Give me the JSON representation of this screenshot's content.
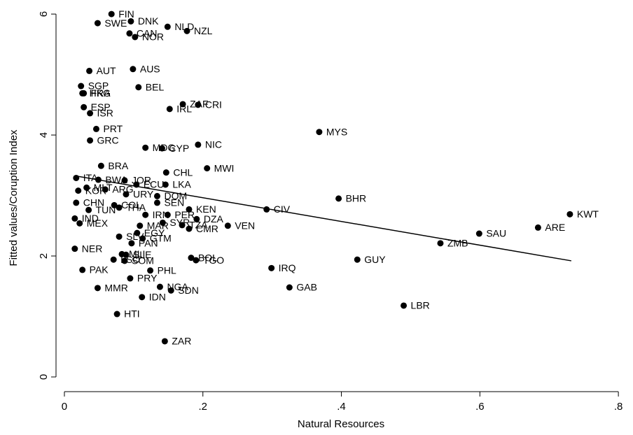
{
  "chart_data": {
    "type": "scatter",
    "x_label": "Natural Resources",
    "y_label": "Fitted values/Coruption Index",
    "xlim": [
      -0.0121,
      0.81
    ],
    "ylim": [
      -0.243,
      6.14
    ],
    "xticks": [
      0,
      {
        "value": 0.2,
        "label": ".2"
      },
      {
        "value": 0.4,
        "label": ".4"
      },
      {
        "value": 0.6,
        "label": ".6"
      },
      {
        "value": 0.8,
        "label": ".8"
      }
    ],
    "yticks": [
      0,
      2,
      4,
      6
    ],
    "color": "#000000",
    "point_labels": [
      "FIN",
      "DNK",
      "SWE",
      "NLD",
      "NZL",
      "CAN",
      "NOR",
      "AUT",
      "AUS",
      "BEL",
      "SGP",
      "HKG",
      "FRA",
      "ESP",
      "ISR",
      "ZAF",
      "CRI",
      "IRL",
      "PRT",
      "MYS",
      "GRC",
      "MDG",
      "CYP",
      "NIC",
      "BRA",
      "CHL",
      "MWI",
      "ITA",
      "BWA",
      "JOR",
      "LKA",
      "ECU",
      "MLT",
      "KOR",
      "ARG",
      "URY",
      "DOM",
      "SEN",
      "CHN",
      "BHR",
      "COL",
      "TUN",
      "IND",
      "MEX",
      "KEN",
      "CIV",
      "THA",
      "PER",
      "DZA",
      "IRN",
      "SYR",
      "VEN",
      "TZA",
      "CMR",
      "MAR",
      "KWT",
      "ARE",
      "SAU",
      "SLV",
      "EGY",
      "GTM",
      "PAN",
      "ZMB",
      "NER",
      "MLI",
      "SLE",
      "GUY",
      "SOM",
      "BOL",
      "TGO",
      "LSO",
      "IRQ",
      "PAK",
      "PHL",
      "PRY",
      "GAB",
      "MMR",
      "NGA",
      "SDN",
      "IDN",
      "LBR",
      "HTI",
      "ZAR"
    ],
    "x": [
      0.068,
      0.096,
      0.048,
      0.149,
      0.177,
      0.094,
      0.102,
      0.036,
      0.099,
      0.107,
      0.024,
      0.026,
      0.028,
      0.028,
      0.037,
      0.171,
      0.193,
      0.152,
      0.046,
      0.368,
      0.037,
      0.117,
      0.141,
      0.193,
      0.053,
      0.147,
      0.206,
      0.017,
      0.049,
      0.087,
      0.146,
      0.104,
      0.032,
      0.02,
      0.059,
      0.089,
      0.134,
      0.134,
      0.017,
      0.396,
      0.072,
      0.035,
      0.015,
      0.022,
      0.18,
      0.292,
      0.079,
      0.149,
      0.191,
      0.117,
      0.142,
      0.236,
      0.17,
      0.18,
      0.109,
      0.73,
      0.684,
      0.599,
      0.079,
      0.105,
      0.113,
      0.097,
      0.543,
      0.015,
      0.083,
      0.089,
      0.423,
      0.087,
      0.183,
      0.19,
      0.071,
      0.299,
      0.026,
      0.124,
      0.095,
      0.325,
      0.048,
      0.138,
      0.154,
      0.112,
      0.49,
      0.076,
      0.145
    ],
    "values": [
      6.0,
      5.88,
      5.85,
      5.79,
      5.72,
      5.68,
      5.62,
      5.06,
      5.09,
      4.79,
      4.81,
      4.69,
      4.69,
      4.46,
      4.36,
      4.51,
      4.5,
      4.43,
      4.1,
      4.05,
      3.91,
      3.79,
      3.78,
      3.84,
      3.49,
      3.38,
      3.45,
      3.29,
      3.26,
      3.25,
      3.18,
      3.18,
      3.13,
      3.08,
      3.1,
      3.02,
      2.99,
      2.88,
      2.88,
      2.95,
      2.84,
      2.76,
      2.62,
      2.54,
      2.77,
      2.77,
      2.8,
      2.68,
      2.61,
      2.68,
      2.55,
      2.5,
      2.51,
      2.45,
      2.5,
      2.69,
      2.47,
      2.37,
      2.32,
      2.38,
      2.29,
      2.21,
      2.21,
      2.12,
      2.03,
      2.02,
      1.94,
      1.92,
      1.97,
      1.93,
      1.94,
      1.8,
      1.77,
      1.76,
      1.63,
      1.48,
      1.47,
      1.49,
      1.43,
      1.32,
      1.18,
      1.04,
      0.59
    ],
    "fit_line": {
      "x": [
        0.018,
        0.732
      ],
      "values": [
        3.32,
        1.92
      ]
    }
  }
}
